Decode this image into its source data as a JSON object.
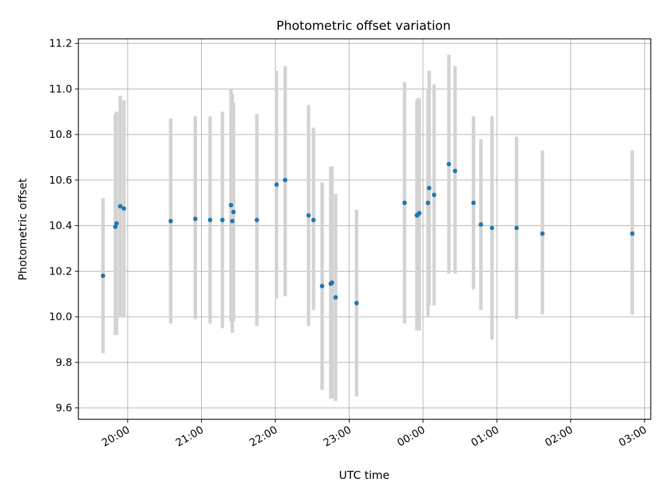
{
  "chart_data": {
    "type": "scatter",
    "title": "Photometric offset variation",
    "xlabel": "UTC time",
    "ylabel": "Photometric offset",
    "x_unit": "UTC time",
    "x_ticks": [
      "20:00",
      "21:00",
      "22:00",
      "23:00",
      "00:00",
      "01:00",
      "02:00",
      "03:00"
    ],
    "xlim": [
      "19:20",
      "03:05"
    ],
    "y_ticks": [
      "9.6",
      "9.8",
      "10.0",
      "10.2",
      "10.4",
      "10.6",
      "10.8",
      "11.0",
      "11.2"
    ],
    "ylim": [
      9.55,
      11.22
    ],
    "grid": true,
    "colors": {
      "point": "#1f77b4",
      "errorbar": "#d3d3d3",
      "grid": "#b0b0b0"
    },
    "series": [
      {
        "points": [
          {
            "t": "19:40",
            "y": 10.18,
            "lo": 9.84,
            "hi": 10.52
          },
          {
            "t": "19:50",
            "y": 10.395,
            "lo": 9.92,
            "hi": 10.89
          },
          {
            "t": "19:51",
            "y": 10.41,
            "lo": 9.92,
            "hi": 10.9
          },
          {
            "t": "19:54",
            "y": 10.485,
            "lo": 10.0,
            "hi": 10.97
          },
          {
            "t": "19:57",
            "y": 10.475,
            "lo": 10.0,
            "hi": 10.95
          },
          {
            "t": "20:35",
            "y": 10.42,
            "lo": 9.97,
            "hi": 10.87
          },
          {
            "t": "20:55",
            "y": 10.43,
            "lo": 9.99,
            "hi": 10.88
          },
          {
            "t": "21:07",
            "y": 10.425,
            "lo": 9.97,
            "hi": 10.88
          },
          {
            "t": "21:17",
            "y": 10.425,
            "lo": 9.95,
            "hi": 10.9
          },
          {
            "t": "21:24",
            "y": 10.49,
            "lo": 9.98,
            "hi": 11.0
          },
          {
            "t": "21:25",
            "y": 10.42,
            "lo": 9.93,
            "hi": 10.98
          },
          {
            "t": "21:26",
            "y": 10.46,
            "lo": 9.98,
            "hi": 10.94
          },
          {
            "t": "21:45",
            "y": 10.425,
            "lo": 9.96,
            "hi": 10.89
          },
          {
            "t": "22:01",
            "y": 10.58,
            "lo": 10.08,
            "hi": 11.08
          },
          {
            "t": "22:08",
            "y": 10.6,
            "lo": 10.09,
            "hi": 11.1
          },
          {
            "t": "22:27",
            "y": 10.445,
            "lo": 9.96,
            "hi": 10.93
          },
          {
            "t": "22:31",
            "y": 10.425,
            "lo": 10.03,
            "hi": 10.83
          },
          {
            "t": "22:38",
            "y": 10.135,
            "lo": 9.68,
            "hi": 10.59
          },
          {
            "t": "22:45",
            "y": 10.145,
            "lo": 9.64,
            "hi": 10.66
          },
          {
            "t": "22:46",
            "y": 10.15,
            "lo": 9.64,
            "hi": 10.66
          },
          {
            "t": "22:49",
            "y": 10.085,
            "lo": 9.63,
            "hi": 10.54
          },
          {
            "t": "23:06",
            "y": 10.06,
            "lo": 9.65,
            "hi": 10.47
          },
          {
            "t": "23:45",
            "y": 10.5,
            "lo": 9.97,
            "hi": 11.03
          },
          {
            "t": "23:55",
            "y": 10.445,
            "lo": 9.94,
            "hi": 10.95
          },
          {
            "t": "23:56",
            "y": 10.45,
            "lo": 9.94,
            "hi": 10.96
          },
          {
            "t": "23:57",
            "y": 10.455,
            "lo": 9.94,
            "hi": 10.96
          },
          {
            "t": "00:04",
            "y": 10.5,
            "lo": 10.0,
            "hi": 11.0
          },
          {
            "t": "00:05",
            "y": 10.565,
            "lo": 10.05,
            "hi": 11.08
          },
          {
            "t": "00:09",
            "y": 10.535,
            "lo": 10.05,
            "hi": 11.02
          },
          {
            "t": "00:21",
            "y": 10.67,
            "lo": 10.19,
            "hi": 11.15
          },
          {
            "t": "00:26",
            "y": 10.64,
            "lo": 10.19,
            "hi": 11.1
          },
          {
            "t": "00:41",
            "y": 10.5,
            "lo": 10.12,
            "hi": 10.88
          },
          {
            "t": "00:47",
            "y": 10.405,
            "lo": 10.03,
            "hi": 10.78
          },
          {
            "t": "00:56",
            "y": 10.39,
            "lo": 9.9,
            "hi": 10.88
          },
          {
            "t": "01:16",
            "y": 10.39,
            "lo": 9.99,
            "hi": 10.79
          },
          {
            "t": "01:37",
            "y": 10.365,
            "lo": 10.01,
            "hi": 10.73
          },
          {
            "t": "02:50",
            "y": 10.365,
            "lo": 10.01,
            "hi": 10.73
          }
        ]
      }
    ]
  }
}
